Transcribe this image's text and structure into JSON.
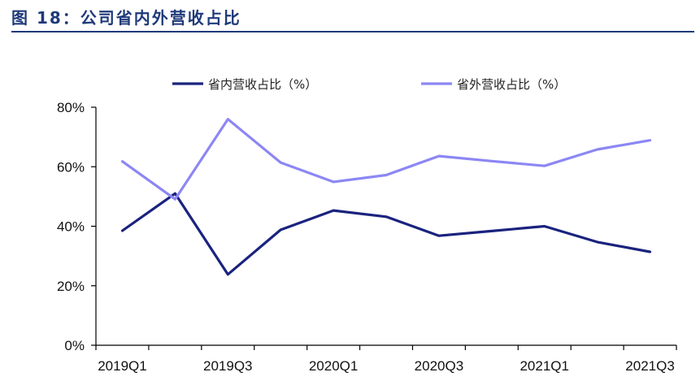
{
  "figure": {
    "title": "图 18：公司省内外营收占比"
  },
  "chart_data": {
    "type": "line",
    "x": [
      "2019Q1",
      "2019Q2",
      "2019Q3",
      "2019Q4",
      "2020Q1",
      "2020Q2",
      "2020Q3",
      "2020Q4",
      "2021Q1",
      "2021Q2",
      "2021Q3"
    ],
    "x_tick_labels": [
      "2019Q1",
      "",
      "2019Q3",
      "",
      "2020Q1",
      "",
      "2020Q3",
      "",
      "2021Q1",
      "",
      "2021Q3"
    ],
    "y_tick_labels": [
      "0%",
      "20%",
      "40%",
      "60%",
      "80%"
    ],
    "ylim": [
      0,
      80
    ],
    "legend_position": "top-center",
    "grid": false,
    "series": [
      {
        "name": "省内营收占比（%）",
        "color": "#1a237e",
        "values": [
          38.5,
          51.0,
          23.8,
          38.8,
          45.3,
          43.2,
          36.8,
          38.4,
          40.0,
          34.7,
          31.4
        ]
      },
      {
        "name": "省外营收占比（%）",
        "color": "#8c87f4",
        "values": [
          61.8,
          49.1,
          76.0,
          61.4,
          54.9,
          57.2,
          63.6,
          61.9,
          60.3,
          65.8,
          68.9
        ]
      }
    ]
  }
}
